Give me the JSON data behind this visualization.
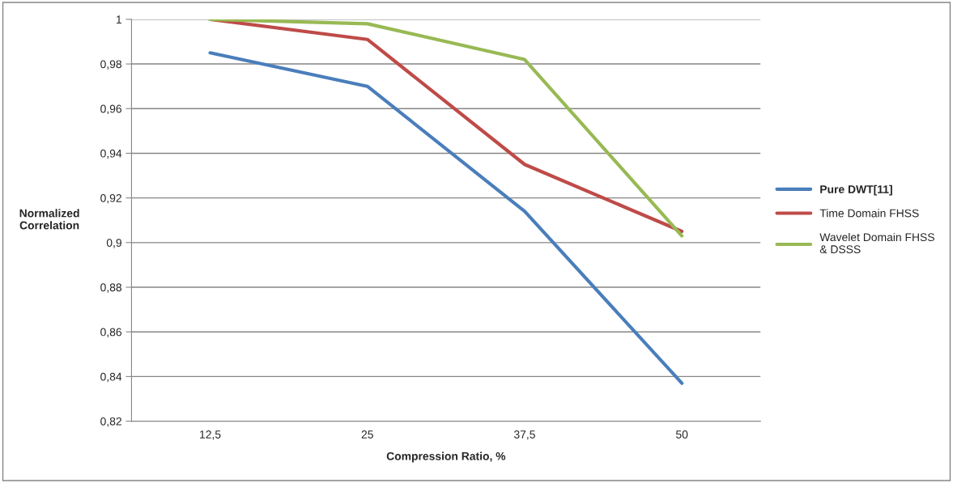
{
  "chart_data": {
    "type": "line",
    "xlabel": "Compression Ratio, %",
    "ylabel": "Normalized\nCorrelation",
    "categories": [
      "12,5",
      "25",
      "37,5",
      "50"
    ],
    "series": [
      {
        "name": "Pure DWT[11]",
        "color": "#4a7ebb",
        "values": [
          0.985,
          0.97,
          0.914,
          0.837
        ]
      },
      {
        "name": "Time Domain FHSS",
        "color": "#be4b48",
        "values": [
          1.0,
          0.991,
          0.935,
          0.905
        ]
      },
      {
        "name": "Wavelet Domain FHSS\n& DSSS",
        "color": "#98b954",
        "values": [
          1.0,
          0.998,
          0.982,
          0.903
        ]
      }
    ],
    "ylim": [
      0.82,
      1.0
    ],
    "yticks": [
      {
        "value": 0.82,
        "label": "0,82"
      },
      {
        "value": 0.84,
        "label": "0,84"
      },
      {
        "value": 0.86,
        "label": "0,86"
      },
      {
        "value": 0.88,
        "label": "0,88"
      },
      {
        "value": 0.9,
        "label": "0,9"
      },
      {
        "value": 0.92,
        "label": "0,92"
      },
      {
        "value": 0.94,
        "label": "0,94"
      },
      {
        "value": 0.96,
        "label": "0,96"
      },
      {
        "value": 0.98,
        "label": "0,98"
      },
      {
        "value": 1.0,
        "label": "1"
      }
    ],
    "grid": "y",
    "legend": "right",
    "marker": "none",
    "line_style": "solid"
  }
}
